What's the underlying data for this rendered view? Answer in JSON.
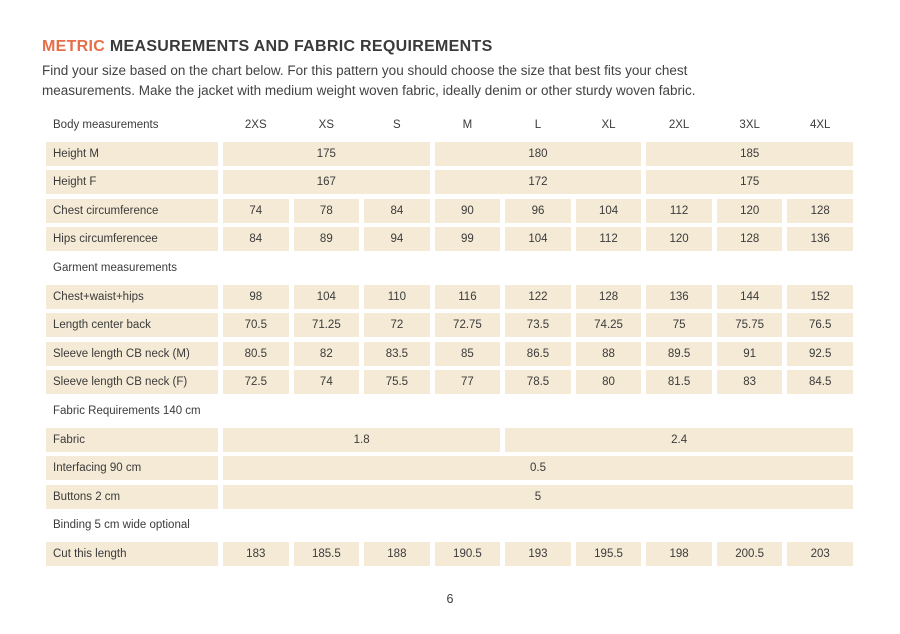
{
  "page": {
    "title_highlight": "METRIC",
    "title_rest": " MEASUREMENTS AND FABRIC REQUIREMENTS",
    "intro_line1": "Find your size based on the chart below. For this pattern you should choose the size that best fits your chest",
    "intro_line2": "measurements. Make the jacket with medium weight woven fabric, ideally denim or other sturdy woven fabric.",
    "page_number": "6"
  },
  "colors": {
    "accent": "#e66e48",
    "cell_background": "#f4ead6",
    "text": "#3b3b3b"
  },
  "table": {
    "header_label": "Body measurements",
    "sizes": [
      "2XS",
      "XS",
      "S",
      "M",
      "L",
      "XL",
      "2XL",
      "3XL",
      "4XL"
    ],
    "rows": [
      {
        "type": "data",
        "label": "Height M",
        "cells": [
          {
            "v": "175",
            "s": 3
          },
          {
            "v": "180",
            "s": 3
          },
          {
            "v": "185",
            "s": 3
          }
        ]
      },
      {
        "type": "data",
        "label": "Height F",
        "cells": [
          {
            "v": "167",
            "s": 3
          },
          {
            "v": "172",
            "s": 3
          },
          {
            "v": "175",
            "s": 3
          }
        ]
      },
      {
        "type": "data",
        "label": "Chest circumference",
        "cells": [
          {
            "v": "74"
          },
          {
            "v": "78"
          },
          {
            "v": "84"
          },
          {
            "v": "90"
          },
          {
            "v": "96"
          },
          {
            "v": "104"
          },
          {
            "v": "112"
          },
          {
            "v": "120"
          },
          {
            "v": "128"
          }
        ]
      },
      {
        "type": "data",
        "label": "Hips circumferencee",
        "cells": [
          {
            "v": "84"
          },
          {
            "v": "89"
          },
          {
            "v": "94"
          },
          {
            "v": "99"
          },
          {
            "v": "104"
          },
          {
            "v": "112"
          },
          {
            "v": "120"
          },
          {
            "v": "128"
          },
          {
            "v": "136"
          }
        ]
      },
      {
        "type": "section",
        "label": "Garment measurements"
      },
      {
        "type": "data",
        "label": "Chest+waist+hips",
        "cells": [
          {
            "v": "98"
          },
          {
            "v": "104"
          },
          {
            "v": "110"
          },
          {
            "v": "116"
          },
          {
            "v": "122"
          },
          {
            "v": "128"
          },
          {
            "v": "136"
          },
          {
            "v": "144"
          },
          {
            "v": "152"
          }
        ]
      },
      {
        "type": "data",
        "label": "Length center back",
        "cells": [
          {
            "v": "70.5"
          },
          {
            "v": "71.25"
          },
          {
            "v": "72"
          },
          {
            "v": "72.75"
          },
          {
            "v": "73.5"
          },
          {
            "v": "74.25"
          },
          {
            "v": "75"
          },
          {
            "v": "75.75"
          },
          {
            "v": "76.5"
          }
        ]
      },
      {
        "type": "data",
        "label": "Sleeve length CB neck (M)",
        "cells": [
          {
            "v": "80.5"
          },
          {
            "v": "82"
          },
          {
            "v": "83.5"
          },
          {
            "v": "85"
          },
          {
            "v": "86.5"
          },
          {
            "v": "88"
          },
          {
            "v": "89.5"
          },
          {
            "v": "91"
          },
          {
            "v": "92.5"
          }
        ]
      },
      {
        "type": "data",
        "label": "Sleeve length CB neck (F)",
        "cells": [
          {
            "v": "72.5"
          },
          {
            "v": "74"
          },
          {
            "v": "75.5"
          },
          {
            "v": "77"
          },
          {
            "v": "78.5"
          },
          {
            "v": "80"
          },
          {
            "v": "81.5"
          },
          {
            "v": "83"
          },
          {
            "v": "84.5"
          }
        ]
      },
      {
        "type": "section",
        "label": "Fabric Requirements 140 cm"
      },
      {
        "type": "data",
        "label": "Fabric",
        "cells": [
          {
            "v": "1.8",
            "s": 4
          },
          {
            "v": "2.4",
            "s": 5
          }
        ]
      },
      {
        "type": "data",
        "label": "Interfacing 90 cm",
        "cells": [
          {
            "v": "0.5",
            "s": 9
          }
        ]
      },
      {
        "type": "data",
        "label": "Buttons 2 cm",
        "cells": [
          {
            "v": "5",
            "s": 9
          }
        ]
      },
      {
        "type": "section",
        "label": "Binding 5 cm wide optional"
      },
      {
        "type": "data",
        "label": "Cut this length",
        "cells": [
          {
            "v": "183"
          },
          {
            "v": "185.5"
          },
          {
            "v": "188"
          },
          {
            "v": "190.5"
          },
          {
            "v": "193"
          },
          {
            "v": "195.5"
          },
          {
            "v": "198"
          },
          {
            "v": "200.5"
          },
          {
            "v": "203"
          }
        ]
      }
    ]
  }
}
